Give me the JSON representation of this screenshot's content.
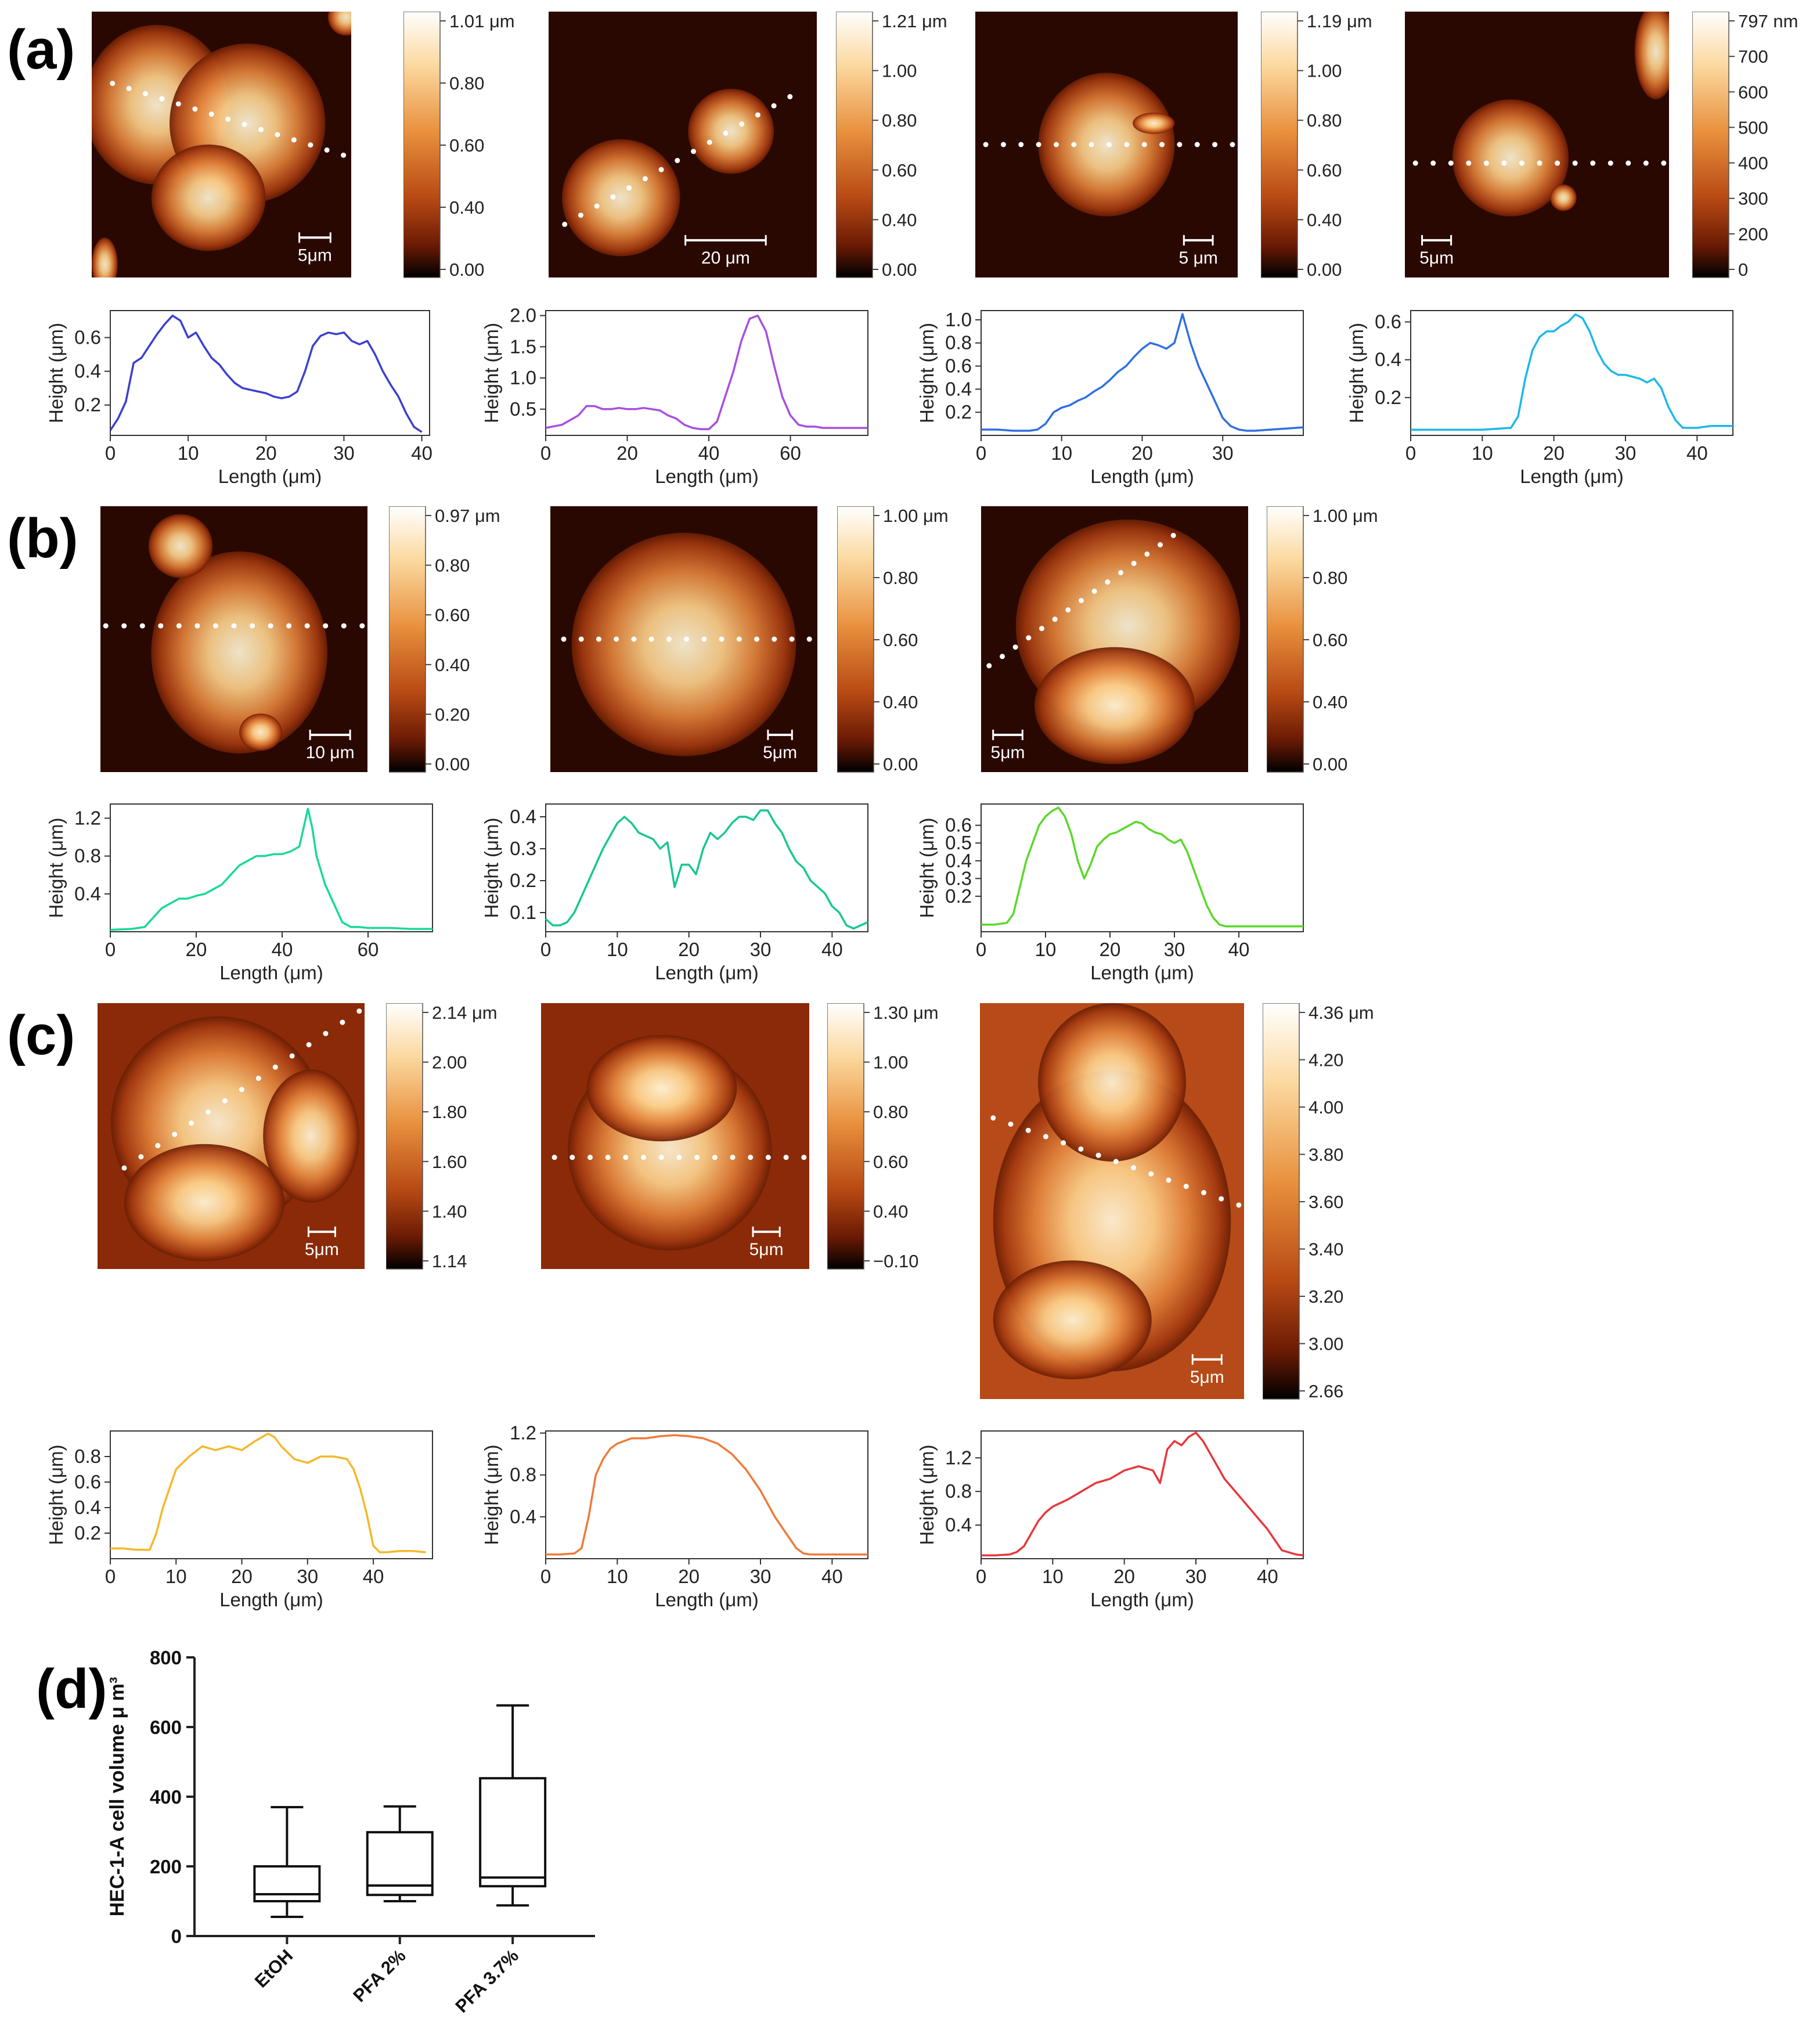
{
  "panel_labels": [
    "(a)",
    "(b)",
    "(c)",
    "(d)"
  ],
  "afm_images": [
    {
      "id": "a1",
      "scale": "5μm",
      "cbar": [
        "1.01 μm",
        "0.80",
        "0.60",
        "0.40",
        "0.00"
      ]
    },
    {
      "id": "a2",
      "scale": "20 μm",
      "cbar": [
        "1.21 μm",
        "1.00",
        "0.80",
        "0.60",
        "0.40",
        "0.00"
      ]
    },
    {
      "id": "a3",
      "scale": "5 μm",
      "cbar": [
        "1.19 μm",
        "1.00",
        "0.80",
        "0.60",
        "0.40",
        "0.00"
      ]
    },
    {
      "id": "a4",
      "scale": "5μm",
      "cbar": [
        "797 nm",
        "700",
        "600",
        "500",
        "400",
        "300",
        "200",
        "0"
      ]
    },
    {
      "id": "b1",
      "scale": "10 μm",
      "cbar": [
        "0.97 μm",
        "0.80",
        "0.60",
        "0.40",
        "0.20",
        "0.00"
      ]
    },
    {
      "id": "b2",
      "scale": "5μm",
      "cbar": [
        "1.00 μm",
        "0.80",
        "0.60",
        "0.40",
        "0.00"
      ]
    },
    {
      "id": "b3",
      "scale": "5μm",
      "cbar": [
        "1.00 μm",
        "0.80",
        "0.60",
        "0.40",
        "0.00"
      ]
    },
    {
      "id": "c1",
      "scale": "5μm",
      "cbar": [
        "2.14 μm",
        "2.00",
        "1.80",
        "1.60",
        "1.40",
        "1.14"
      ]
    },
    {
      "id": "c2",
      "scale": "5μm",
      "cbar": [
        "1.30 μm",
        "1.00",
        "0.80",
        "0.60",
        "0.40",
        "−0.10"
      ]
    },
    {
      "id": "c3",
      "scale": "5μm",
      "cbar": [
        "4.36 μm",
        "4.20",
        "4.00",
        "3.80",
        "3.60",
        "3.40",
        "3.20",
        "3.00",
        "2.66"
      ]
    }
  ],
  "chart_data": [
    {
      "id": "pa1",
      "type": "line",
      "xlabel": "Length (μm)",
      "ylabel": "Height (μm)",
      "color": "#3b3fcf",
      "xlim": [
        0,
        41
      ],
      "ylim": [
        0.02,
        0.76
      ],
      "xticks": [
        0,
        10,
        20,
        30,
        40
      ],
      "yticks": [
        0.2,
        0.4,
        0.6
      ],
      "x": [
        0,
        1,
        2,
        3,
        4,
        5,
        6,
        7,
        8,
        9,
        10,
        11,
        12,
        13,
        14,
        15,
        16,
        17,
        18,
        19,
        20,
        21,
        22,
        23,
        24,
        25,
        26,
        27,
        28,
        29,
        30,
        31,
        32,
        33,
        34,
        35,
        36,
        37,
        38,
        39,
        40
      ],
      "y": [
        0.05,
        0.12,
        0.22,
        0.45,
        0.48,
        0.55,
        0.62,
        0.68,
        0.73,
        0.7,
        0.6,
        0.63,
        0.55,
        0.48,
        0.44,
        0.38,
        0.33,
        0.3,
        0.29,
        0.28,
        0.27,
        0.25,
        0.24,
        0.25,
        0.28,
        0.4,
        0.55,
        0.61,
        0.63,
        0.62,
        0.63,
        0.58,
        0.56,
        0.58,
        0.5,
        0.4,
        0.32,
        0.25,
        0.15,
        0.07,
        0.04
      ]
    },
    {
      "id": "pa2",
      "type": "line",
      "xlabel": "Length (μm)",
      "ylabel": "Height (μm)",
      "color": "#a64fe0",
      "xlim": [
        0,
        79
      ],
      "ylim": [
        0.08,
        2.08
      ],
      "xticks": [
        0,
        20,
        40,
        60
      ],
      "yticks": [
        0.5,
        1.0,
        1.5,
        2.0
      ],
      "x": [
        0,
        4,
        8,
        10,
        12,
        14,
        16,
        18,
        20,
        22,
        24,
        26,
        28,
        30,
        32,
        34,
        36,
        38,
        40,
        42,
        44,
        46,
        48,
        50,
        52,
        54,
        56,
        58,
        60,
        62,
        64,
        66,
        68,
        70,
        74,
        79
      ],
      "y": [
        0.2,
        0.25,
        0.4,
        0.55,
        0.55,
        0.5,
        0.5,
        0.52,
        0.5,
        0.5,
        0.52,
        0.5,
        0.48,
        0.4,
        0.35,
        0.25,
        0.2,
        0.18,
        0.18,
        0.3,
        0.7,
        1.1,
        1.6,
        1.95,
        2.0,
        1.75,
        1.2,
        0.7,
        0.4,
        0.25,
        0.22,
        0.22,
        0.2,
        0.2,
        0.2,
        0.2
      ]
    },
    {
      "id": "pa3",
      "type": "line",
      "xlabel": "Length (μm)",
      "ylabel": "Height (μm)",
      "color": "#2f6fe0",
      "xlim": [
        0,
        40
      ],
      "ylim": [
        0.0,
        1.08
      ],
      "xticks": [
        0,
        10,
        20,
        30
      ],
      "yticks": [
        0.2,
        0.4,
        0.6,
        0.8,
        1.0
      ],
      "x": [
        0,
        2,
        4,
        6,
        7,
        8,
        9,
        10,
        11,
        12,
        13,
        14,
        15,
        16,
        17,
        18,
        19,
        20,
        21,
        22,
        23,
        24,
        25,
        26,
        27,
        28,
        29,
        30,
        31,
        32,
        33,
        34,
        36,
        38,
        40
      ],
      "y": [
        0.05,
        0.05,
        0.04,
        0.04,
        0.05,
        0.1,
        0.2,
        0.24,
        0.26,
        0.3,
        0.33,
        0.38,
        0.42,
        0.48,
        0.55,
        0.6,
        0.68,
        0.75,
        0.8,
        0.78,
        0.75,
        0.8,
        1.05,
        0.8,
        0.6,
        0.45,
        0.3,
        0.15,
        0.08,
        0.05,
        0.04,
        0.04,
        0.05,
        0.06,
        0.07
      ]
    },
    {
      "id": "pa4",
      "type": "line",
      "xlabel": "Length (μm)",
      "ylabel": "Height (μm)",
      "color": "#1cb8e8",
      "xlim": [
        0,
        45
      ],
      "ylim": [
        0.0,
        0.66
      ],
      "xticks": [
        0,
        10,
        20,
        30,
        40
      ],
      "yticks": [
        0.2,
        0.4,
        0.6
      ],
      "x": [
        0,
        5,
        10,
        14,
        15,
        16,
        17,
        18,
        19,
        20,
        21,
        22,
        23,
        24,
        25,
        26,
        27,
        28,
        29,
        30,
        31,
        32,
        33,
        34,
        35,
        36,
        37,
        38,
        39,
        40,
        42,
        45
      ],
      "y": [
        0.03,
        0.03,
        0.03,
        0.04,
        0.1,
        0.3,
        0.45,
        0.52,
        0.55,
        0.55,
        0.58,
        0.6,
        0.64,
        0.62,
        0.55,
        0.45,
        0.38,
        0.34,
        0.32,
        0.32,
        0.31,
        0.3,
        0.28,
        0.3,
        0.25,
        0.15,
        0.08,
        0.04,
        0.04,
        0.04,
        0.05,
        0.05
      ]
    },
    {
      "id": "pb1",
      "type": "line",
      "xlabel": "Length (μm)",
      "ylabel": "Height (μm)",
      "color": "#1ad89a",
      "xlim": [
        0,
        75
      ],
      "ylim": [
        0.0,
        1.35
      ],
      "xticks": [
        0,
        20,
        40,
        60
      ],
      "yticks": [
        0.4,
        0.8,
        1.2
      ],
      "x": [
        0,
        5,
        8,
        10,
        12,
        14,
        16,
        18,
        20,
        22,
        24,
        26,
        28,
        30,
        32,
        34,
        36,
        38,
        40,
        42,
        44,
        45,
        46,
        47,
        48,
        50,
        52,
        54,
        56,
        58,
        60,
        65,
        70,
        75
      ],
      "y": [
        0.02,
        0.03,
        0.05,
        0.15,
        0.25,
        0.3,
        0.35,
        0.35,
        0.38,
        0.4,
        0.45,
        0.5,
        0.6,
        0.7,
        0.75,
        0.8,
        0.8,
        0.82,
        0.82,
        0.85,
        0.9,
        1.1,
        1.3,
        1.1,
        0.8,
        0.5,
        0.3,
        0.1,
        0.05,
        0.05,
        0.04,
        0.04,
        0.03,
        0.03
      ]
    },
    {
      "id": "pb2",
      "type": "line",
      "xlabel": "Length (μm)",
      "ylabel": "Height (μm)",
      "color": "#17c792",
      "xlim": [
        0,
        45
      ],
      "ylim": [
        0.04,
        0.44
      ],
      "xticks": [
        0,
        10,
        20,
        30,
        40
      ],
      "yticks": [
        0.1,
        0.2,
        0.3,
        0.4
      ],
      "x": [
        0,
        1,
        2,
        3,
        4,
        5,
        6,
        7,
        8,
        9,
        10,
        11,
        12,
        13,
        14,
        15,
        16,
        17,
        18,
        19,
        20,
        21,
        22,
        23,
        24,
        25,
        26,
        27,
        28,
        29,
        30,
        31,
        32,
        33,
        34,
        35,
        36,
        37,
        38,
        39,
        40,
        41,
        42,
        43,
        44,
        45
      ],
      "y": [
        0.08,
        0.06,
        0.06,
        0.07,
        0.1,
        0.15,
        0.2,
        0.25,
        0.3,
        0.34,
        0.38,
        0.4,
        0.38,
        0.35,
        0.34,
        0.33,
        0.3,
        0.32,
        0.18,
        0.25,
        0.25,
        0.22,
        0.3,
        0.35,
        0.33,
        0.35,
        0.38,
        0.4,
        0.4,
        0.39,
        0.42,
        0.42,
        0.38,
        0.35,
        0.3,
        0.26,
        0.24,
        0.2,
        0.18,
        0.16,
        0.12,
        0.1,
        0.06,
        0.05,
        0.06,
        0.07
      ]
    },
    {
      "id": "pb3",
      "type": "line",
      "xlabel": "Length (μm)",
      "ylabel": "Height (μm)",
      "color": "#5ad82a",
      "xlim": [
        0,
        50
      ],
      "ylim": [
        0.0,
        0.72
      ],
      "xticks": [
        0,
        10,
        20,
        30,
        40
      ],
      "yticks": [
        0.2,
        0.3,
        0.4,
        0.5,
        0.6
      ],
      "x": [
        0,
        2,
        4,
        5,
        6,
        7,
        8,
        9,
        10,
        11,
        12,
        13,
        14,
        15,
        16,
        17,
        18,
        19,
        20,
        21,
        22,
        23,
        24,
        25,
        26,
        27,
        28,
        29,
        30,
        31,
        32,
        33,
        34,
        35,
        36,
        37,
        38,
        40,
        45,
        50
      ],
      "y": [
        0.04,
        0.04,
        0.05,
        0.1,
        0.25,
        0.4,
        0.5,
        0.6,
        0.65,
        0.68,
        0.7,
        0.65,
        0.55,
        0.4,
        0.3,
        0.38,
        0.48,
        0.52,
        0.55,
        0.56,
        0.58,
        0.6,
        0.62,
        0.61,
        0.58,
        0.56,
        0.55,
        0.52,
        0.5,
        0.52,
        0.45,
        0.35,
        0.25,
        0.15,
        0.08,
        0.04,
        0.03,
        0.03,
        0.03,
        0.03
      ]
    },
    {
      "id": "pc1",
      "type": "line",
      "xlabel": "Length (μm)",
      "ylabel": "Height (μm)",
      "color": "#f5b82a",
      "xlim": [
        0,
        49
      ],
      "ylim": [
        0.0,
        1.0
      ],
      "xticks": [
        0,
        10,
        20,
        30,
        40
      ],
      "yticks": [
        0.2,
        0.4,
        0.6,
        0.8
      ],
      "x": [
        0,
        2,
        4,
        6,
        7,
        8,
        10,
        12,
        14,
        16,
        18,
        20,
        22,
        24,
        25,
        26,
        28,
        30,
        32,
        34,
        36,
        37,
        38,
        39,
        40,
        41,
        42,
        44,
        46,
        48
      ],
      "y": [
        0.08,
        0.08,
        0.07,
        0.07,
        0.2,
        0.4,
        0.7,
        0.8,
        0.88,
        0.85,
        0.88,
        0.85,
        0.92,
        0.98,
        0.95,
        0.88,
        0.78,
        0.75,
        0.8,
        0.8,
        0.78,
        0.7,
        0.55,
        0.35,
        0.1,
        0.05,
        0.05,
        0.06,
        0.06,
        0.05
      ]
    },
    {
      "id": "pc2",
      "type": "line",
      "xlabel": "Length (μm)",
      "ylabel": "Height (μm)",
      "color": "#f07a3a",
      "xlim": [
        0,
        45
      ],
      "ylim": [
        0.0,
        1.22
      ],
      "xticks": [
        0,
        10,
        20,
        30,
        40
      ],
      "yticks": [
        0.4,
        0.8,
        1.2
      ],
      "x": [
        0,
        2,
        4,
        5,
        6,
        7,
        8,
        9,
        10,
        12,
        14,
        16,
        18,
        20,
        22,
        24,
        26,
        28,
        30,
        32,
        34,
        35,
        36,
        37,
        38,
        40,
        42,
        44,
        45
      ],
      "y": [
        0.04,
        0.04,
        0.05,
        0.1,
        0.4,
        0.8,
        0.95,
        1.05,
        1.1,
        1.15,
        1.15,
        1.17,
        1.18,
        1.17,
        1.15,
        1.1,
        1.0,
        0.85,
        0.65,
        0.4,
        0.2,
        0.1,
        0.05,
        0.04,
        0.04,
        0.04,
        0.04,
        0.04,
        0.04
      ]
    },
    {
      "id": "pc3",
      "type": "line",
      "xlabel": "Length (μm)",
      "ylabel": "Height (μm)",
      "color": "#e8363a",
      "xlim": [
        0,
        45
      ],
      "ylim": [
        0.0,
        1.52
      ],
      "xticks": [
        0,
        10,
        20,
        30,
        40
      ],
      "yticks": [
        0.4,
        0.8,
        1.2
      ],
      "x": [
        0,
        2,
        4,
        5,
        6,
        7,
        8,
        9,
        10,
        12,
        14,
        16,
        18,
        20,
        22,
        24,
        25,
        26,
        27,
        28,
        29,
        30,
        31,
        32,
        33,
        34,
        36,
        38,
        40,
        42,
        44,
        45
      ],
      "y": [
        0.04,
        0.04,
        0.05,
        0.08,
        0.15,
        0.3,
        0.45,
        0.55,
        0.62,
        0.7,
        0.8,
        0.9,
        0.95,
        1.05,
        1.1,
        1.05,
        0.9,
        1.3,
        1.4,
        1.35,
        1.45,
        1.5,
        1.4,
        1.25,
        1.1,
        0.95,
        0.75,
        0.55,
        0.35,
        0.1,
        0.05,
        0.04
      ]
    },
    {
      "id": "d",
      "type": "box",
      "ylabel": "HEC-1-A  cell volume μ m³",
      "ylim": [
        0,
        800
      ],
      "yticks": [
        0,
        200,
        400,
        600,
        800
      ],
      "categories": [
        "EtOH",
        "PFA 2%",
        "PFA 3.7%"
      ],
      "boxes": [
        {
          "min": 55,
          "q1": 100,
          "median": 120,
          "q3": 200,
          "max": 370
        },
        {
          "min": 100,
          "q1": 118,
          "median": 145,
          "q3": 298,
          "max": 372
        },
        {
          "min": 88,
          "q1": 143,
          "median": 168,
          "q3": 453,
          "max": 662
        }
      ]
    }
  ]
}
